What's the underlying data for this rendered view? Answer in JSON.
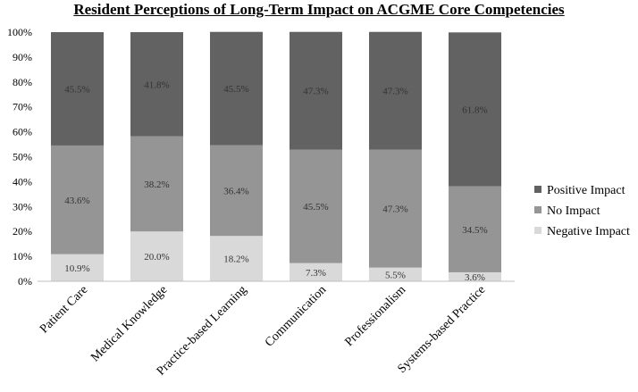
{
  "chart_data": {
    "type": "bar",
    "stacked": true,
    "title": "Resident Perceptions of Long-Term Impact on ACGME Core Competencies",
    "categories": [
      "Patient Care",
      "Medical Knowledge",
      "Practice-based Learning",
      "Communication",
      "Professionalism",
      "Systems-based Practice"
    ],
    "series": [
      {
        "name": "Negative Impact",
        "color": "#d9d9d9",
        "values": [
          10.9,
          20.0,
          18.2,
          7.3,
          5.5,
          3.6
        ],
        "labels": [
          "10.9%",
          "20.0%",
          "18.2%",
          "7.3%",
          "5.5%",
          "3.6%"
        ]
      },
      {
        "name": "No Impact",
        "color": "#959595",
        "values": [
          43.6,
          38.2,
          36.4,
          45.5,
          47.3,
          34.5
        ],
        "labels": [
          "43.6%",
          "38.2%",
          "36.4%",
          "45.5%",
          "47.3%",
          "34.5%"
        ]
      },
      {
        "name": "Positive Impact",
        "color": "#626262",
        "values": [
          45.5,
          41.8,
          45.5,
          47.3,
          47.3,
          61.8
        ],
        "labels": [
          "45.5%",
          "41.8%",
          "45.5%",
          "47.3%",
          "47.3%",
          "61.8%"
        ]
      }
    ],
    "legend_order": [
      "Positive Impact",
      "No Impact",
      "Negative Impact"
    ],
    "y_ticks": [
      "0%",
      "10%",
      "20%",
      "30%",
      "40%",
      "50%",
      "60%",
      "70%",
      "80%",
      "90%",
      "100%"
    ],
    "ylim": [
      0,
      100
    ],
    "xlabel": "",
    "ylabel": "",
    "legend_position": "right"
  }
}
